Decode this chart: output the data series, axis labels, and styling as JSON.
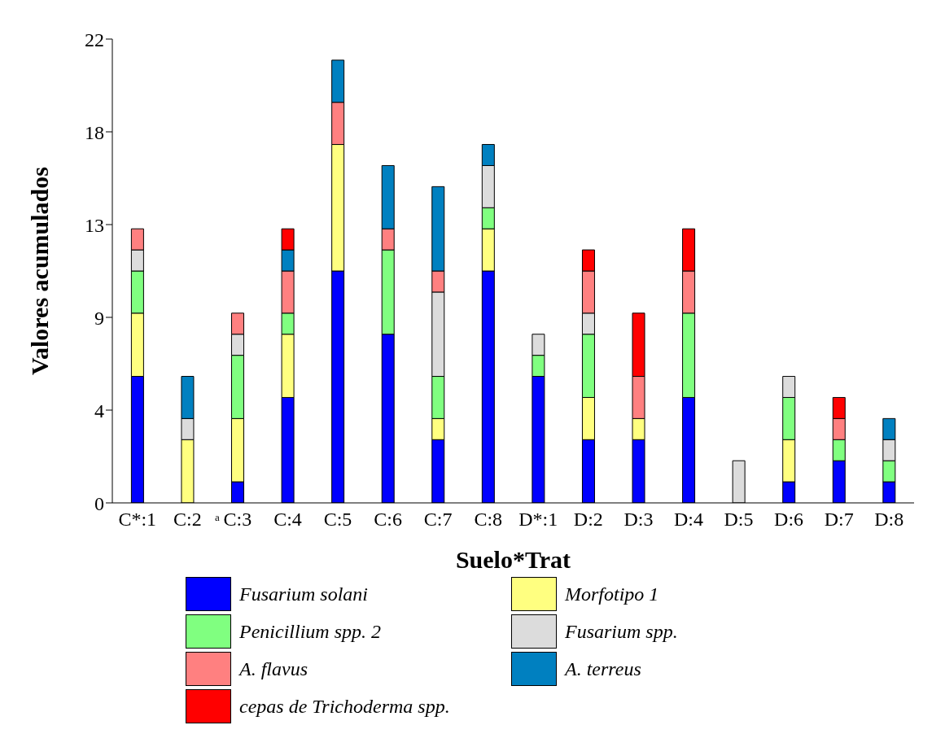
{
  "chart_data": {
    "type": "bar",
    "stacked": true,
    "xlabel": "Suelo*Trat",
    "ylabel": "Valores acumulados",
    "categories": [
      "C*:1",
      "C:2",
      "C:3",
      "C:4",
      "C:5",
      "C:6",
      "C:7",
      "C:8",
      "D*:1",
      "D:2",
      "D:3",
      "D:4",
      "D:5",
      "D:6",
      "D:7",
      "D:8"
    ],
    "ylim": [
      0,
      22
    ],
    "yticks": [
      0,
      {
        "value": 4.4,
        "label": "4"
      },
      {
        "value": 8.8,
        "label": "9"
      },
      {
        "value": 13.2,
        "label": "13"
      },
      {
        "value": 17.6,
        "label": "18"
      },
      22
    ],
    "legend": "bottom",
    "annotations": [
      "a"
    ],
    "series": [
      {
        "name": "Fusarium solani",
        "color": "#0000ff",
        "values": [
          6,
          0,
          1,
          5,
          11,
          8,
          3,
          11,
          6,
          3,
          3,
          5,
          0,
          1,
          2,
          1
        ]
      },
      {
        "name": "Morfotipo 1",
        "color": "#ffff80",
        "values": [
          3,
          3,
          3,
          3,
          6,
          0,
          1,
          2,
          0,
          2,
          1,
          0,
          0,
          2,
          0,
          0
        ]
      },
      {
        "name": "Penicillium spp. 2",
        "color": "#80ff80",
        "values": [
          2,
          0,
          3,
          1,
          0,
          4,
          2,
          1,
          1,
          3,
          0,
          4,
          0,
          2,
          1,
          1
        ]
      },
      {
        "name": "Fusarium spp.",
        "color": "#dcdcdc",
        "values": [
          1,
          1,
          1,
          0,
          0,
          0,
          4,
          2,
          1,
          1,
          0,
          0,
          2,
          1,
          0,
          1
        ]
      },
      {
        "name": "A. flavus",
        "color": "#ff8080",
        "values": [
          1,
          0,
          1,
          2,
          2,
          1,
          1,
          0,
          0,
          2,
          2,
          2,
          0,
          0,
          1,
          0
        ]
      },
      {
        "name": "A. terreus",
        "color": "#0080c0",
        "values": [
          0,
          2,
          0,
          1,
          2,
          3,
          4,
          1,
          0,
          0,
          0,
          0,
          0,
          0,
          0,
          1
        ]
      },
      {
        "name": "cepas de Trichoderma spp.",
        "color": "#ff0000",
        "values": [
          0,
          0,
          0,
          1,
          0,
          0,
          0,
          0,
          0,
          1,
          3,
          2,
          0,
          0,
          1,
          0
        ]
      }
    ]
  }
}
